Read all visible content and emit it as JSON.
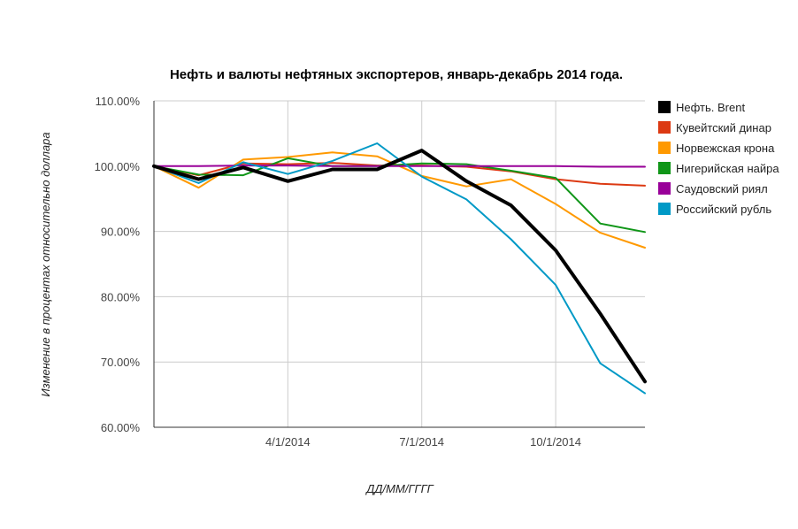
{
  "chart_data": {
    "type": "line",
    "title": "Нефть и валюты нефтяных экспортеров, январь-декабрь 2014 года.",
    "xlabel": "ДД/ММ/ГГГГ",
    "ylabel": "Изменение в процентах относительно доллара",
    "x_tick_labels": [
      "4/1/2014",
      "7/1/2014",
      "10/1/2014"
    ],
    "x_tick_months": [
      3,
      6,
      9
    ],
    "x_range_months": [
      0,
      11
    ],
    "y_tick_labels": [
      "110.00%",
      "100.00%",
      "90.00%",
      "80.00%",
      "70.00%",
      "60.00%"
    ],
    "y_ticks": [
      110,
      100,
      90,
      80,
      70,
      60
    ],
    "ylim": [
      60,
      110
    ],
    "grid": true,
    "legend_position": "right",
    "x": [
      0,
      1,
      2,
      3,
      4,
      5,
      6,
      7,
      8,
      9,
      10,
      11
    ],
    "series": [
      {
        "name": "Кувейтский динар",
        "color": "#dc3912",
        "width": 2,
        "values": [
          100,
          98.6,
          100.4,
          100.3,
          100.5,
          100.1,
          100.1,
          99.9,
          99.2,
          98.0,
          97.3,
          97.0
        ]
      },
      {
        "name": "Норвежская крона",
        "color": "#ff9900",
        "width": 2,
        "values": [
          100,
          96.7,
          101.0,
          101.4,
          102.1,
          101.5,
          98.5,
          96.9,
          98.0,
          94.2,
          89.8,
          87.5
        ]
      },
      {
        "name": "Нигерийская найра",
        "color": "#109618",
        "width": 2,
        "values": [
          100,
          98.7,
          98.6,
          101.2,
          100.0,
          100.0,
          100.4,
          100.3,
          99.3,
          98.2,
          91.2,
          89.9
        ]
      },
      {
        "name": "Саудовский риял",
        "color": "#990099",
        "width": 2,
        "values": [
          100,
          100,
          100.1,
          100.1,
          100.0,
          100.0,
          100.0,
          100.0,
          100.0,
          100.0,
          99.9,
          99.9
        ]
      },
      {
        "name": "Российский рубль",
        "color": "#0099c6",
        "width": 2,
        "values": [
          100,
          97.4,
          100.6,
          98.8,
          100.8,
          103.5,
          98.4,
          94.9,
          88.8,
          81.8,
          69.8,
          65.2
        ]
      },
      {
        "name": "Нефть. Brent",
        "color": "#000000",
        "width": 4,
        "values": [
          100,
          98.0,
          99.8,
          97.7,
          99.5,
          99.5,
          102.4,
          97.7,
          94.0,
          87.1,
          77.4,
          67.0
        ]
      }
    ],
    "legend": [
      {
        "label": "Нефть. Brent",
        "color": "#000000"
      },
      {
        "label": "Кувейтский динар",
        "color": "#dc3912"
      },
      {
        "label": "Норвежская крона",
        "color": "#ff9900"
      },
      {
        "label": "Нигерийская найра",
        "color": "#109618"
      },
      {
        "label": "Саудовский риял",
        "color": "#990099"
      },
      {
        "label": "Российский рубль",
        "color": "#0099c6"
      }
    ]
  }
}
